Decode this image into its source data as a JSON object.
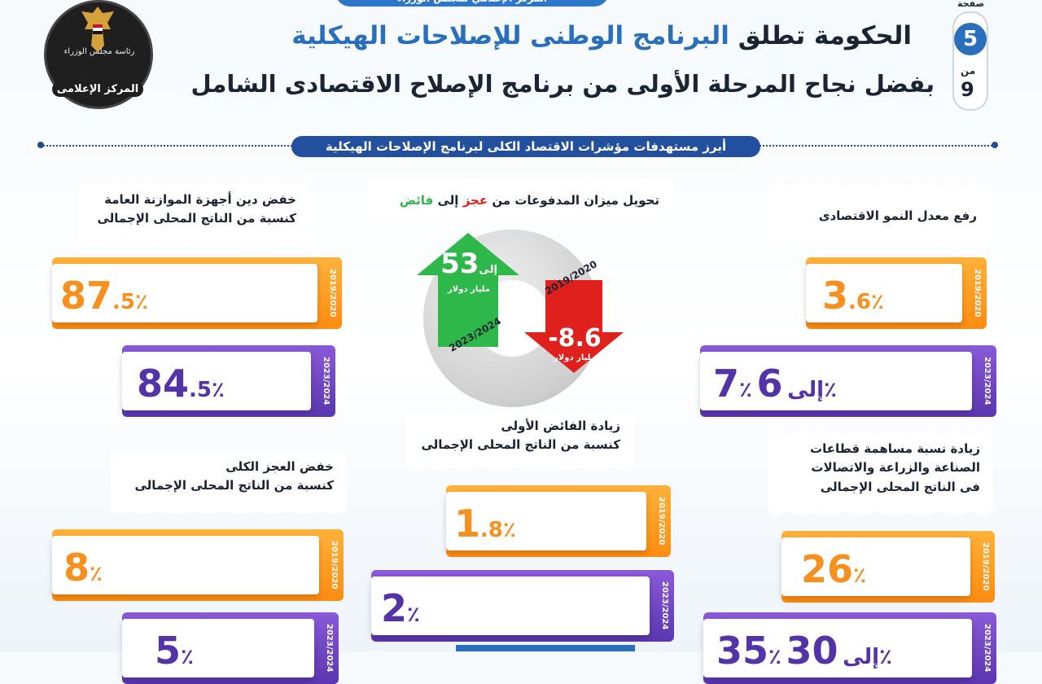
{
  "banner": {
    "text": "المركز الإعلامي لمجلس الوزراء"
  },
  "page": {
    "label": "صفحة",
    "current": "5",
    "of": "من",
    "total": "9"
  },
  "logo": {
    "ring_text": "رئاسة مجلس الوزراء",
    "label": "المركز الإعلامى"
  },
  "header": {
    "title_part1": "الحكومة تطلق",
    "title_highlight": "البرنامج الوطنى للإصلاحات الهيكلية",
    "subtitle": "بفضل نجاح المرحلة الأولى من برنامج الإصلاح الاقتصادى الشامل"
  },
  "section": {
    "title": "أبرز مستهدفات مؤشرات الاقتصاد الكلى لبرنامج الإصلاحات الهيكلية"
  },
  "years": {
    "y1": "2019/2020",
    "y2": "2023/2024"
  },
  "growth": {
    "label": "رفع معدل النمو الاقتصادى",
    "v2019": {
      "num": "3",
      "dec": ".6",
      "pct": "٪"
    },
    "v2023": {
      "a": "6",
      "to": "إلى",
      "b": "7",
      "pct": "٪"
    }
  },
  "sectors": {
    "label_l1": "زيادة نسبة مساهمة قطاعات",
    "label_l2": "الصناعة والزراعة والاتصالات",
    "label_l3": "فى الناتج المحلى الإجمالى",
    "v2019": {
      "num": "26",
      "pct": "٪"
    },
    "v2023": {
      "a": "30",
      "to": "إلى",
      "b": "35",
      "pct": "٪"
    }
  },
  "payments": {
    "label_pre": "تحويل ميزان المدفوعات من",
    "deficit": "عجز",
    "to": "إلى",
    "surplus": "فائض",
    "deficit_value": "-8.6",
    "deficit_unit": "مليار دولار",
    "deficit_year": "2019/2020",
    "surplus_value_a": "3",
    "surplus_to": "إلى",
    "surplus_value_b": "5",
    "surplus_unit": "مليار دولار",
    "surplus_year": "2023/2024"
  },
  "primary": {
    "label_l1": "زيادة الفائض الأولى",
    "label_l2": "كنسبة من الناتج المحلى الإجمالى",
    "v2019": {
      "num": "1",
      "dec": ".8",
      "pct": "٪"
    },
    "v2023": {
      "num": "2",
      "pct": "٪"
    }
  },
  "debt": {
    "label_l1": "خفض دين أجهزة الموازنة العامة",
    "label_l2": "كنسبة من الناتج المحلى الإجمالى",
    "v2019": {
      "num": "87",
      "dec": ".5",
      "pct": "٪"
    },
    "v2023": {
      "num": "84",
      "dec": ".5",
      "pct": "٪"
    }
  },
  "deficit": {
    "label_l1": "خفض العجز الكلى",
    "label_l2": "كنسبة من الناتج المحلى الإجمالى",
    "v2019": {
      "num": "8",
      "pct": "٪"
    },
    "v2023": {
      "num": "5",
      "pct": "٪"
    }
  },
  "colors": {
    "orange": "#f7901e",
    "purple": "#5433a8",
    "blue": "#2a6fbd",
    "green": "#2eb84a",
    "red": "#e0201c"
  }
}
